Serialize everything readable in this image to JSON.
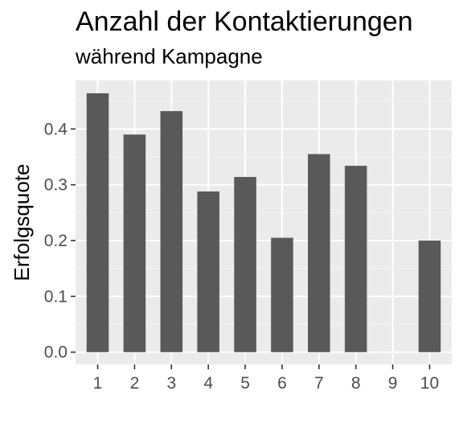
{
  "chart_data": {
    "type": "bar",
    "title": "Anzahl der Kontaktierungen",
    "subtitle": "während Kampagne",
    "xlabel": "",
    "ylabel": "Erfolgsquote",
    "categories": [
      "1",
      "2",
      "3",
      "4",
      "5",
      "6",
      "7",
      "8",
      "9",
      "10"
    ],
    "values": [
      0.464,
      0.39,
      0.432,
      0.288,
      0.314,
      0.205,
      0.355,
      0.334,
      0,
      0.2
    ],
    "ylim": [
      -0.022,
      0.487
    ],
    "yticks": [
      0.0,
      0.1,
      0.2,
      0.3,
      0.4
    ],
    "ytick_labels": [
      "0.0",
      "0.1",
      "0.2",
      "0.3",
      "0.4"
    ],
    "grid": true,
    "legend": "none",
    "colors": {
      "bar": "#595959",
      "panel": "#ebebeb",
      "grid_major": "#ffffff",
      "grid_minor": "#f5f5f5",
      "tick": "#333333",
      "tick_label": "#4d4d4d"
    }
  }
}
